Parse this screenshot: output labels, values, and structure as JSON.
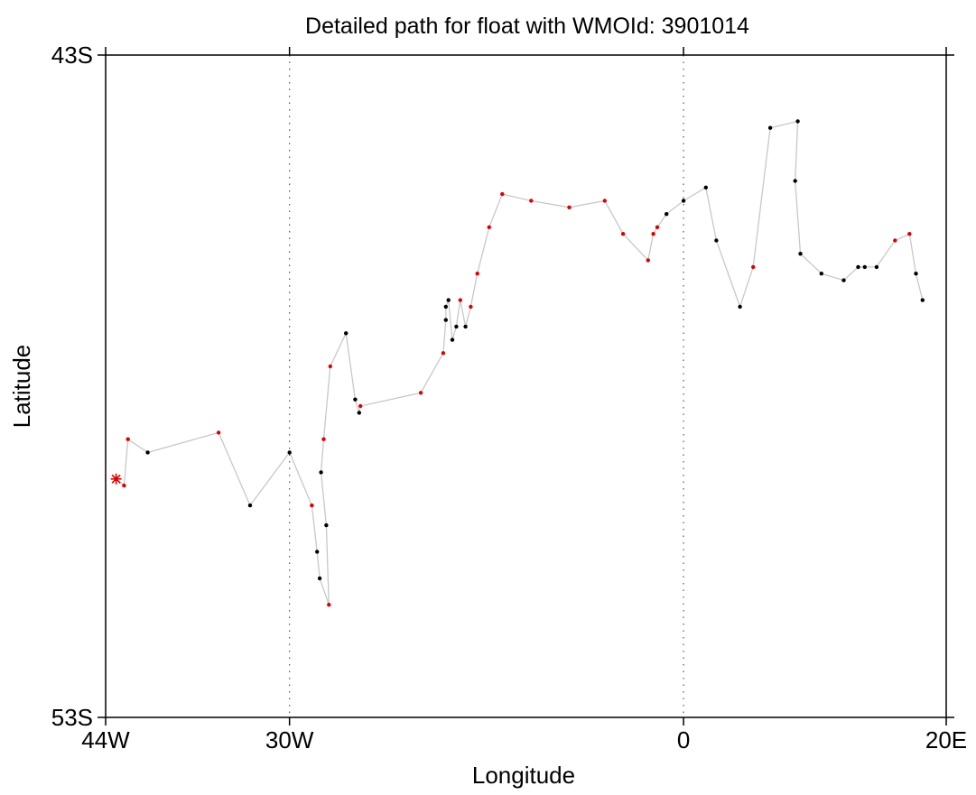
{
  "chart_data": {
    "type": "line",
    "title": "Detailed path for float with WMOId: 3901014",
    "xlabel": "Longitude",
    "ylabel": "Latitude",
    "xlim": [
      -44,
      20
    ],
    "ylim": [
      -53,
      -43
    ],
    "x_ticks": [
      {
        "value": -44,
        "label": "44W"
      },
      {
        "value": -30,
        "label": "30W"
      },
      {
        "value": 0,
        "label": "0"
      },
      {
        "value": 20,
        "label": "20E"
      }
    ],
    "y_ticks": [
      {
        "value": -43,
        "label": "43S"
      },
      {
        "value": -53,
        "label": "53S"
      }
    ],
    "gridlines_x": [
      -30,
      0
    ],
    "colors": {
      "track": "#c8c8c8",
      "red_point": "#dd0000",
      "black_point": "#000000",
      "start_marker": "#dd0000"
    },
    "start_marker": {
      "lon": -43.2,
      "lat": -49.4,
      "shape": "asterisk"
    },
    "series": [
      {
        "points": [
          {
            "lon": -43.2,
            "lat": -49.4,
            "color": "red"
          },
          {
            "lon": -42.6,
            "lat": -49.5,
            "color": "red"
          },
          {
            "lon": -42.3,
            "lat": -48.8,
            "color": "red"
          },
          {
            "lon": -40.8,
            "lat": -49.0,
            "color": "black"
          },
          {
            "lon": -35.4,
            "lat": -48.7,
            "color": "red"
          },
          {
            "lon": -33.0,
            "lat": -49.8,
            "color": "black"
          },
          {
            "lon": -30.0,
            "lat": -49.0,
            "color": "black"
          },
          {
            "lon": -28.3,
            "lat": -49.8,
            "color": "red"
          },
          {
            "lon": -27.9,
            "lat": -50.5,
            "color": "black"
          },
          {
            "lon": -27.7,
            "lat": -50.9,
            "color": "black"
          },
          {
            "lon": -27.0,
            "lat": -51.3,
            "color": "red"
          },
          {
            "lon": -27.2,
            "lat": -50.1,
            "color": "black"
          },
          {
            "lon": -27.6,
            "lat": -49.3,
            "color": "black"
          },
          {
            "lon": -27.4,
            "lat": -48.8,
            "color": "red"
          },
          {
            "lon": -26.9,
            "lat": -47.7,
            "color": "red"
          },
          {
            "lon": -25.7,
            "lat": -47.2,
            "color": "black"
          },
          {
            "lon": -25.0,
            "lat": -48.2,
            "color": "black"
          },
          {
            "lon": -24.7,
            "lat": -48.4,
            "color": "black"
          },
          {
            "lon": -24.6,
            "lat": -48.3,
            "color": "red"
          },
          {
            "lon": -20.0,
            "lat": -48.1,
            "color": "red"
          },
          {
            "lon": -18.3,
            "lat": -47.5,
            "color": "red"
          },
          {
            "lon": -18.1,
            "lat": -47.0,
            "color": "black"
          },
          {
            "lon": -18.1,
            "lat": -46.8,
            "color": "black"
          },
          {
            "lon": -17.9,
            "lat": -46.7,
            "color": "black"
          },
          {
            "lon": -17.6,
            "lat": -47.3,
            "color": "black"
          },
          {
            "lon": -17.3,
            "lat": -47.1,
            "color": "black"
          },
          {
            "lon": -17.0,
            "lat": -46.7,
            "color": "red"
          },
          {
            "lon": -16.6,
            "lat": -47.1,
            "color": "black"
          },
          {
            "lon": -16.2,
            "lat": -46.8,
            "color": "red"
          },
          {
            "lon": -15.7,
            "lat": -46.3,
            "color": "red"
          },
          {
            "lon": -14.8,
            "lat": -45.6,
            "color": "red"
          },
          {
            "lon": -13.8,
            "lat": -45.1,
            "color": "red"
          },
          {
            "lon": -11.6,
            "lat": -45.2,
            "color": "red"
          },
          {
            "lon": -8.7,
            "lat": -45.3,
            "color": "red"
          },
          {
            "lon": -6.0,
            "lat": -45.2,
            "color": "red"
          },
          {
            "lon": -4.6,
            "lat": -45.7,
            "color": "red"
          },
          {
            "lon": -2.7,
            "lat": -46.1,
            "color": "red"
          },
          {
            "lon": -2.3,
            "lat": -45.7,
            "color": "red"
          },
          {
            "lon": -2.0,
            "lat": -45.6,
            "color": "red"
          },
          {
            "lon": -1.3,
            "lat": -45.4,
            "color": "black"
          },
          {
            "lon": 0.0,
            "lat": -45.2,
            "color": "black"
          },
          {
            "lon": 1.7,
            "lat": -45.0,
            "color": "black"
          },
          {
            "lon": 2.5,
            "lat": -45.8,
            "color": "black"
          },
          {
            "lon": 4.3,
            "lat": -46.8,
            "color": "black"
          },
          {
            "lon": 5.3,
            "lat": -46.2,
            "color": "red"
          },
          {
            "lon": 6.6,
            "lat": -44.1,
            "color": "black"
          },
          {
            "lon": 8.7,
            "lat": -44.0,
            "color": "black"
          },
          {
            "lon": 8.5,
            "lat": -44.9,
            "color": "black"
          },
          {
            "lon": 8.9,
            "lat": -46.0,
            "color": "black"
          },
          {
            "lon": 10.5,
            "lat": -46.3,
            "color": "black"
          },
          {
            "lon": 12.2,
            "lat": -46.4,
            "color": "black"
          },
          {
            "lon": 13.3,
            "lat": -46.2,
            "color": "black"
          },
          {
            "lon": 13.8,
            "lat": -46.2,
            "color": "black"
          },
          {
            "lon": 14.7,
            "lat": -46.2,
            "color": "black"
          },
          {
            "lon": 16.1,
            "lat": -45.8,
            "color": "red"
          },
          {
            "lon": 17.2,
            "lat": -45.7,
            "color": "red"
          },
          {
            "lon": 17.7,
            "lat": -46.3,
            "color": "black"
          },
          {
            "lon": 18.2,
            "lat": -46.7,
            "color": "black"
          }
        ]
      }
    ]
  }
}
